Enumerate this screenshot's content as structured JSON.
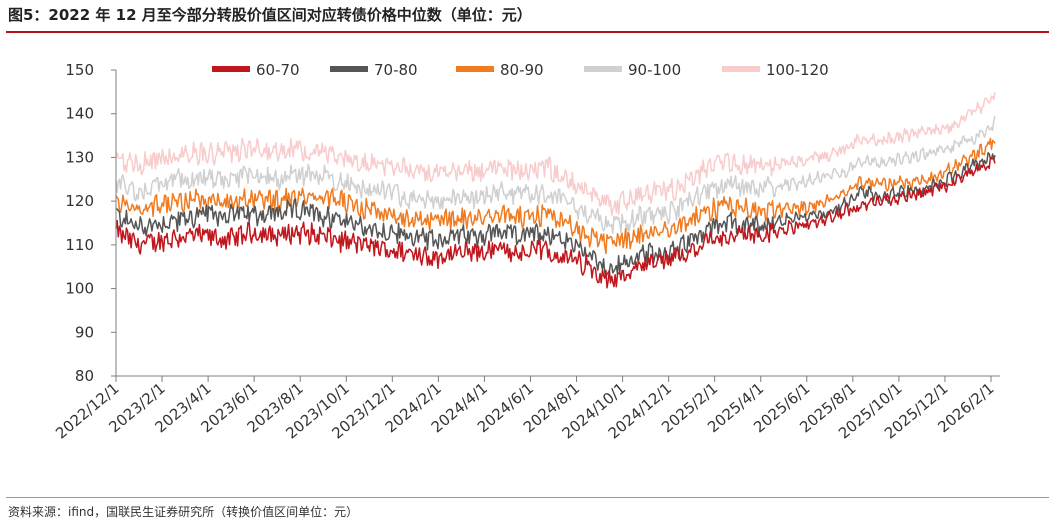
{
  "figure": {
    "title": "图5：2022 年 12 月至今部分转股价值区间对应转债价格中位数（单位：元）",
    "source": "资料来源：ifind，国联民生证券研究所（转换价值区间单位：元）"
  },
  "chart_data": {
    "type": "line",
    "title": "图5：2022 年 12 月至今部分转股价值区间对应转债价格中位数（单位：元）",
    "xlabel": "",
    "ylabel": "",
    "ylim": [
      80,
      150
    ],
    "y_ticks": [
      80,
      90,
      100,
      110,
      120,
      130,
      140,
      150
    ],
    "x_tick_labels": [
      "2022/12/1",
      "2023/2/1",
      "2023/4/1",
      "2023/6/1",
      "2023/8/1",
      "2023/10/1",
      "2023/12/1",
      "2024/2/1",
      "2024/4/1",
      "2024/6/1",
      "2024/8/1",
      "2024/10/1",
      "2024/12/1",
      "2025/2/1",
      "2025/4/1",
      "2025/6/1",
      "2025/8/1",
      "2025/10/1",
      "2025/12/1",
      "2026/2/1"
    ],
    "grid": false,
    "legend_position": "top",
    "x": [
      "2022/12/1",
      "2023/1/1",
      "2023/2/1",
      "2023/3/1",
      "2023/4/1",
      "2023/5/1",
      "2023/6/1",
      "2023/7/1",
      "2023/8/1",
      "2023/9/1",
      "2023/10/1",
      "2023/11/1",
      "2023/12/1",
      "2024/1/1",
      "2024/2/1",
      "2024/3/1",
      "2024/4/1",
      "2024/5/1",
      "2024/6/1",
      "2024/7/1",
      "2024/8/1",
      "2024/9/1",
      "2024/10/1",
      "2024/11/1",
      "2024/12/1",
      "2025/1/1",
      "2025/2/1",
      "2025/3/1",
      "2025/4/1",
      "2025/5/1",
      "2025/6/1",
      "2025/7/1",
      "2025/8/1",
      "2025/9/1",
      "2025/10/1",
      "2025/11/1",
      "2025/12/1",
      "2026/1/1",
      "2026/2/1",
      "2026/2/15"
    ],
    "series": [
      {
        "name": "60-70",
        "color": "#c0161d",
        "values": [
          113,
          110,
          111,
          112,
          112,
          111,
          113,
          112,
          113,
          112,
          111,
          110,
          109,
          108,
          107,
          108,
          108,
          109,
          108,
          109,
          107,
          105,
          102,
          104,
          106,
          107,
          111,
          112,
          112,
          113,
          114,
          115,
          117,
          119,
          120,
          121,
          122,
          124,
          127,
          129
        ]
      },
      {
        "name": "70-80",
        "color": "#555555",
        "values": [
          117,
          114,
          115,
          116,
          117,
          117,
          117,
          117,
          118,
          117,
          116,
          114,
          113,
          112,
          111,
          112,
          112,
          113,
          112,
          113,
          111,
          108,
          104,
          107,
          108,
          109,
          113,
          115,
          114,
          115,
          116,
          117,
          118,
          122,
          121,
          122,
          123,
          125,
          128,
          131
        ]
      },
      {
        "name": "80-90",
        "color": "#f07b20",
        "values": [
          120,
          118,
          119,
          120,
          120,
          120,
          120,
          120,
          121,
          121,
          120,
          118,
          117,
          116,
          115,
          116,
          116,
          117,
          116,
          117,
          115,
          112,
          110,
          112,
          113,
          114,
          117,
          119,
          118,
          118,
          118,
          119,
          121,
          124,
          124,
          124,
          125,
          127,
          130,
          134
        ]
      },
      {
        "name": "90-100",
        "color": "#d0d0d0",
        "values": [
          124,
          122,
          124,
          125,
          125,
          125,
          126,
          125,
          126,
          126,
          124,
          123,
          122,
          121,
          120,
          121,
          121,
          122,
          121,
          122,
          120,
          117,
          114,
          116,
          117,
          118,
          122,
          124,
          123,
          123,
          124,
          125,
          126,
          129,
          129,
          130,
          131,
          132,
          134,
          138
        ]
      },
      {
        "name": "100-120",
        "color": "#f8cccc",
        "values": [
          130,
          128,
          130,
          131,
          131,
          131,
          132,
          131,
          132,
          131,
          130,
          129,
          128,
          127,
          126,
          127,
          127,
          128,
          127,
          128,
          125,
          122,
          119,
          121,
          122,
          123,
          127,
          129,
          128,
          128,
          129,
          130,
          131,
          134,
          134,
          135,
          136,
          137,
          140,
          144
        ]
      }
    ]
  }
}
